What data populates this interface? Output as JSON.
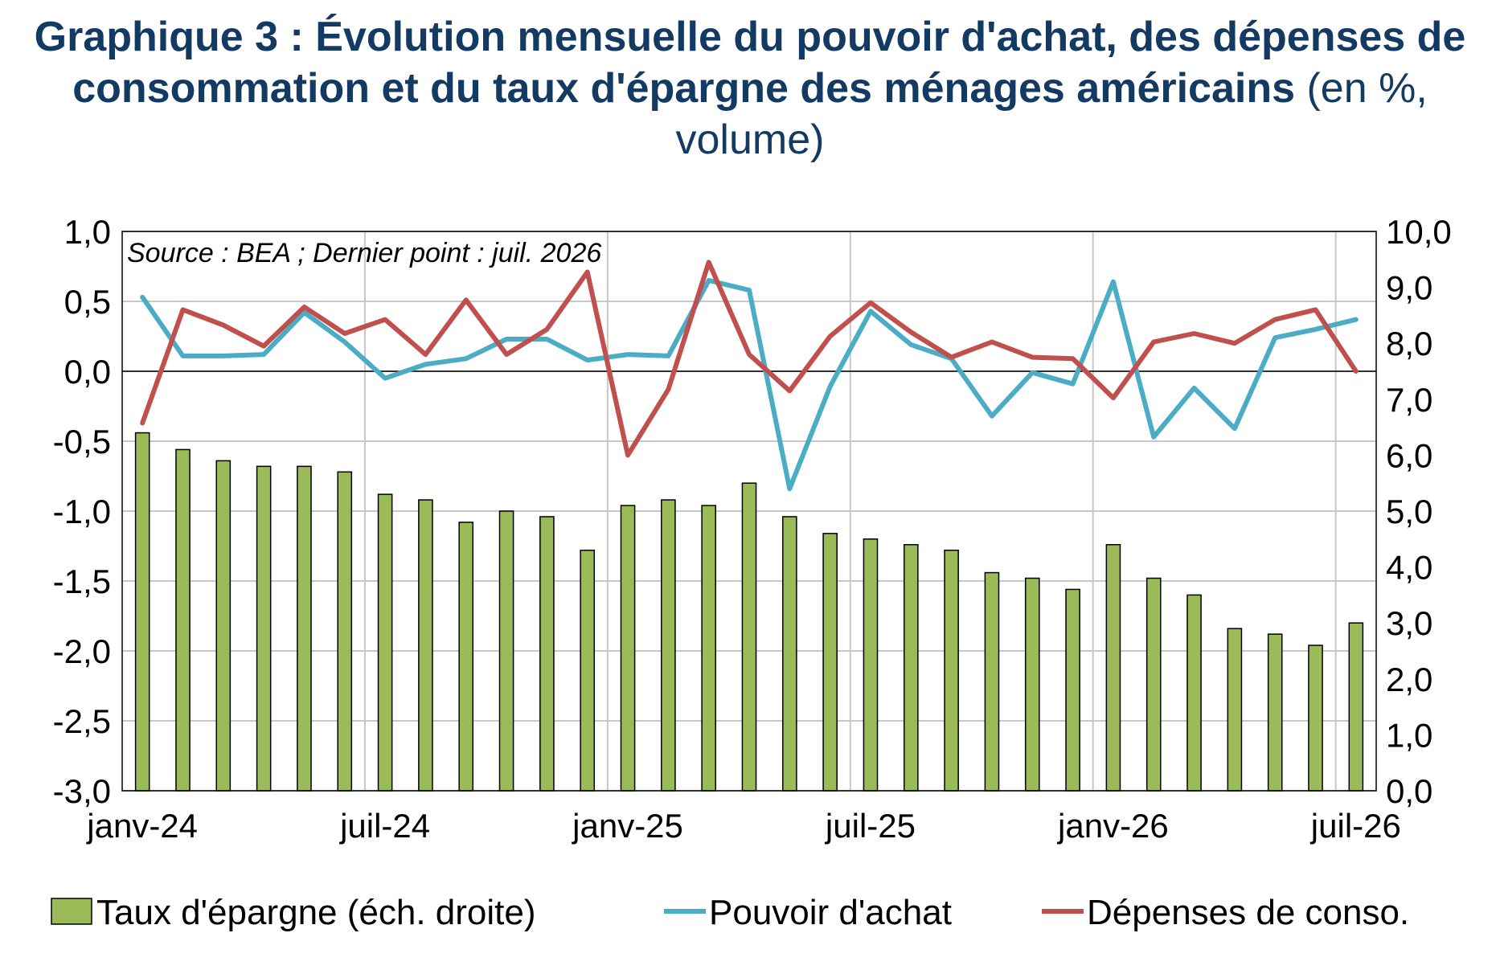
{
  "title": {
    "bold_text": "Graphique 3 : Évolution mensuelle du pouvoir d'achat, des dépenses de consommation et du taux d'épargne des ménages américains",
    "unit_text": "(en %, volume)"
  },
  "chart_data": {
    "type": "bar+line",
    "source_note": "Source : BEA ; Dernier point : juil. 2026",
    "x_tick_labels": [
      "janv-24",
      "juil-24",
      "janv-25",
      "juil-25",
      "janv-26",
      "juil-26"
    ],
    "x_tick_indices": [
      0,
      6,
      12,
      18,
      24,
      30
    ],
    "months": [
      "janv-24",
      "févr-24",
      "mars-24",
      "avr-24",
      "mai-24",
      "juin-24",
      "juil-24",
      "août-24",
      "sept-24",
      "oct-24",
      "nov-24",
      "déc-24",
      "janv-25",
      "févr-25",
      "mars-25",
      "avr-25",
      "mai-25",
      "juin-25",
      "juil-25",
      "août-25",
      "sept-25",
      "oct-25",
      "nov-25",
      "déc-25",
      "janv-26",
      "févr-26",
      "mars-26",
      "avr-26",
      "mai-26",
      "juin-26",
      "juil-26"
    ],
    "left_axis": {
      "min": -3.0,
      "max": 1.0,
      "step": 0.5,
      "tick_labels": [
        "1,0",
        "0,5",
        "0,0",
        "-0,5",
        "-1,0",
        "-1,5",
        "-2,0",
        "-2,5",
        "-3,0"
      ]
    },
    "right_axis": {
      "min": 0.0,
      "max": 10.0,
      "step": 1.0,
      "tick_labels": [
        "10,0",
        "9,0",
        "8,0",
        "7,0",
        "6,0",
        "5,0",
        "4,0",
        "3,0",
        "2,0",
        "1,0",
        "0,0"
      ]
    },
    "grid": true,
    "legend_position": "bottom",
    "series": [
      {
        "name": "Taux d'épargne (éch. droite)",
        "kind": "bar",
        "axis": "right",
        "color": "#9bbb59",
        "values": [
          6.4,
          6.1,
          5.9,
          5.8,
          5.8,
          5.7,
          5.3,
          5.2,
          4.8,
          5.0,
          4.9,
          4.3,
          5.1,
          5.2,
          5.1,
          5.5,
          4.9,
          4.6,
          4.5,
          4.4,
          4.3,
          3.9,
          3.8,
          3.6,
          4.4,
          3.8,
          3.5,
          2.9,
          2.8,
          2.6,
          3.0
        ]
      },
      {
        "name": "Pouvoir d'achat",
        "kind": "line",
        "axis": "left",
        "color": "#4bacc6",
        "values": [
          0.53,
          0.11,
          0.11,
          0.12,
          0.42,
          0.21,
          -0.05,
          0.05,
          0.09,
          0.23,
          0.23,
          0.08,
          0.12,
          0.11,
          0.65,
          0.58,
          -0.84,
          -0.11,
          0.43,
          0.19,
          0.09,
          -0.32,
          -0.01,
          -0.09,
          0.64,
          -0.47,
          -0.12,
          -0.41,
          0.24,
          0.3,
          0.37
        ]
      },
      {
        "name": "Dépenses de conso.",
        "kind": "line",
        "axis": "left",
        "color": "#c0504d",
        "values": [
          -0.37,
          0.44,
          0.33,
          0.18,
          0.46,
          0.27,
          0.37,
          0.12,
          0.51,
          0.12,
          0.3,
          0.71,
          -0.6,
          -0.13,
          0.78,
          0.12,
          -0.14,
          0.25,
          0.49,
          0.28,
          0.1,
          0.21,
          0.1,
          0.09,
          -0.19,
          0.21,
          0.27,
          0.2,
          0.37,
          0.44,
          0.0
        ]
      }
    ]
  }
}
